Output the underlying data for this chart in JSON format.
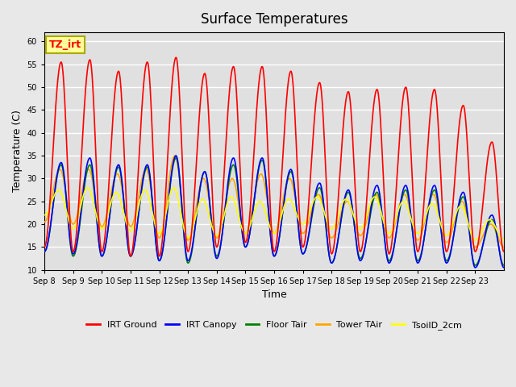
{
  "title": "Surface Temperatures",
  "xlabel": "Time",
  "ylabel": "Temperature (C)",
  "ylim": [
    10,
    62
  ],
  "yticks": [
    10,
    15,
    20,
    25,
    30,
    35,
    40,
    45,
    50,
    55,
    60
  ],
  "x_labels": [
    "Sep 8",
    "Sep 9",
    "Sep 10",
    "Sep 11",
    "Sep 12",
    "Sep 13",
    "Sep 14",
    "Sep 15",
    "Sep 16",
    "Sep 17",
    "Sep 18",
    "Sep 19",
    "Sep 20",
    "Sep 21",
    "Sep 22",
    "Sep 23"
  ],
  "x_tick_positions": [
    0,
    1,
    2,
    3,
    4,
    5,
    6,
    7,
    8,
    9,
    10,
    11,
    12,
    13,
    14,
    15
  ],
  "annotation_text": "TZ_irt",
  "annotation_box_color": "#FFFF99",
  "annotation_box_edge": "#AAAA00",
  "legend_entries": [
    {
      "label": "IRT Ground",
      "color": "red"
    },
    {
      "label": "IRT Canopy",
      "color": "blue"
    },
    {
      "label": "Floor Tair",
      "color": "green"
    },
    {
      "label": "Tower TAir",
      "color": "orange"
    },
    {
      "label": "TsoilD_2cm",
      "color": "yellow"
    }
  ],
  "background_color": "#e8e8e8",
  "plot_bg_color": "#e0e0e0",
  "grid_color": "white",
  "n_days": 16,
  "peaks_red": [
    55.5,
    56.0,
    53.5,
    55.5,
    56.5,
    53.0,
    54.5,
    54.5,
    53.5,
    51.0,
    49.0,
    49.5,
    50.0,
    49.5,
    46.0,
    38.0
  ],
  "peaks_blue": [
    33.5,
    34.5,
    33.0,
    33.0,
    35.0,
    31.5,
    34.5,
    34.5,
    32.0,
    29.0,
    27.5,
    28.5,
    28.5,
    28.5,
    27.0,
    22.0
  ],
  "peaks_green": [
    33.0,
    33.0,
    32.5,
    32.5,
    34.5,
    31.5,
    33.0,
    34.0,
    31.5,
    28.0,
    27.0,
    27.0,
    27.5,
    27.5,
    26.0,
    21.0
  ],
  "peaks_orange": [
    32.0,
    32.0,
    31.0,
    32.0,
    35.0,
    30.0,
    30.0,
    31.0,
    30.0,
    26.5,
    25.0,
    26.5,
    26.5,
    26.5,
    25.0,
    20.0
  ],
  "peaks_yellow": [
    27.5,
    28.0,
    27.0,
    27.5,
    28.0,
    25.5,
    26.0,
    25.0,
    25.5,
    26.0,
    25.5,
    26.0,
    25.0,
    24.5,
    24.0,
    21.0
  ],
  "night_mins_red": [
    15.0,
    14.0,
    14.0,
    13.0,
    13.0,
    14.0,
    15.0,
    16.0,
    14.0,
    15.0,
    13.5,
    14.0,
    13.5,
    14.0,
    14.0,
    14.0
  ],
  "night_mins_blue": [
    14.0,
    13.5,
    13.0,
    13.0,
    12.0,
    12.0,
    12.5,
    15.0,
    13.0,
    13.5,
    11.5,
    12.0,
    11.5,
    11.5,
    11.5,
    10.5
  ],
  "night_mins_green": [
    14.0,
    13.0,
    13.0,
    13.0,
    12.0,
    11.5,
    13.0,
    15.0,
    13.0,
    13.5,
    11.5,
    12.5,
    12.0,
    12.0,
    12.0,
    11.0
  ],
  "night_mins_orange": [
    20.5,
    20.0,
    19.5,
    19.5,
    17.0,
    16.5,
    17.0,
    18.0,
    18.0,
    18.0,
    17.0,
    17.5,
    17.0,
    16.5,
    16.0,
    15.0
  ],
  "night_mins_yellow": [
    22.0,
    19.0,
    19.0,
    18.5,
    18.0,
    17.0,
    17.5,
    18.0,
    18.0,
    20.0,
    19.0,
    19.0,
    18.0,
    18.0,
    17.5,
    16.5
  ]
}
